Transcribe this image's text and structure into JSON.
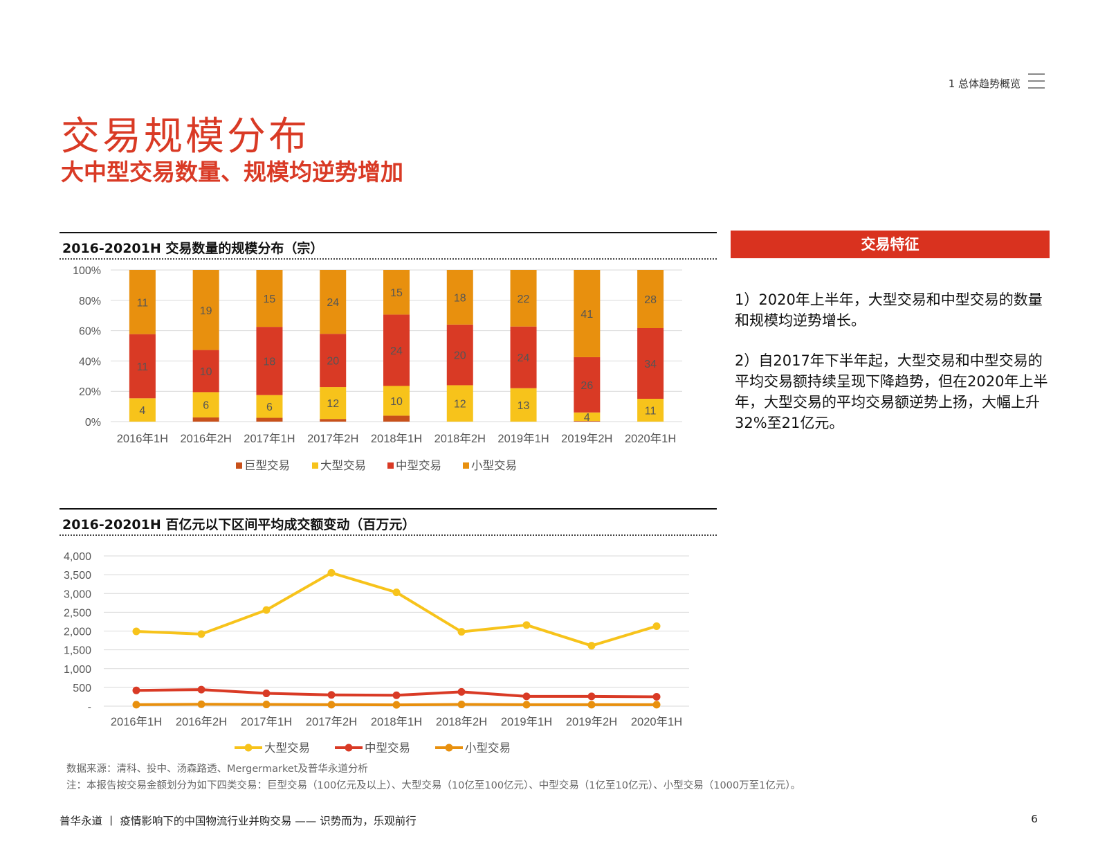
{
  "header": {
    "section": "1 总体趋势概览"
  },
  "title": "交易规模分布",
  "subtitle": "大中型交易数量、规模均逆势增加",
  "side": {
    "header": "交易特征",
    "paragraphs": [
      "1）2020年上半年，大型交易和中型交易的数量和规模均逆势增长。",
      "2）自2017年下半年起，大型交易和中型交易的平均交易额持续呈现下降趋势，但在2020年上半年，大型交易的平均交易额逆势上扬，大幅上升32%至21亿元。"
    ]
  },
  "colors": {
    "huge": "#c8501a",
    "large": "#f7c31b",
    "medium": "#d93a25",
    "small": "#e8900e",
    "accent": "#d9321f"
  },
  "chart_data": [
    {
      "type": "bar",
      "stacked": true,
      "percent": true,
      "title": "2016-20201H 交易数量的规模分布（宗）",
      "categories": [
        "2016年1H",
        "2016年2H",
        "2017年1H",
        "2017年2H",
        "2018年1H",
        "2018年2H",
        "2019年1H",
        "2019年2H",
        "2020年1H"
      ],
      "y_ticks": [
        "0%",
        "20%",
        "40%",
        "60%",
        "80%",
        "100%"
      ],
      "series": [
        {
          "name": "巨型交易",
          "values": [
            0,
            1,
            1,
            1,
            2,
            0,
            0,
            0.3,
            0
          ],
          "shown_labels": [
            "",
            "",
            "",
            "",
            "",
            "",
            "",
            "",
            ""
          ]
        },
        {
          "name": "大型交易",
          "values": [
            4,
            6,
            6,
            12,
            10,
            12,
            13,
            4,
            11
          ],
          "shown_labels": [
            "4",
            "6",
            "6",
            "12",
            "10",
            "12",
            "13",
            "4",
            "11"
          ]
        },
        {
          "name": "中型交易",
          "values": [
            11,
            10,
            18,
            20,
            24,
            20,
            24,
            26,
            34
          ],
          "shown_labels": [
            "11",
            "10",
            "18",
            "20",
            "24",
            "20",
            "24",
            "26",
            "34"
          ]
        },
        {
          "name": "小型交易",
          "values": [
            11,
            19,
            15,
            24,
            15,
            18,
            22,
            41,
            28
          ],
          "shown_labels": [
            "11",
            "19",
            "15",
            "24",
            "15",
            "18",
            "22",
            "41",
            "28"
          ]
        }
      ],
      "legend_position": "bottom"
    },
    {
      "type": "line",
      "title": "2016-20201H 百亿元以下区间平均成交额变动（百万元）",
      "categories": [
        "2016年1H",
        "2016年2H",
        "2017年1H",
        "2017年2H",
        "2018年1H",
        "2018年2H",
        "2019年1H",
        "2019年2H",
        "2020年1H"
      ],
      "y_ticks": [
        "-",
        "500",
        "1,000",
        "1,500",
        "2,000",
        "2,500",
        "3,000",
        "3,500",
        "4,000"
      ],
      "ylim": [
        0,
        4000
      ],
      "series": [
        {
          "name": "大型交易",
          "values": [
            1990,
            1920,
            2560,
            3550,
            3030,
            1980,
            2160,
            1610,
            2130
          ]
        },
        {
          "name": "中型交易",
          "values": [
            420,
            440,
            340,
            300,
            290,
            380,
            260,
            260,
            250
          ]
        },
        {
          "name": "小型交易",
          "values": [
            40,
            50,
            45,
            40,
            35,
            45,
            40,
            40,
            40
          ]
        }
      ],
      "legend_position": "bottom"
    }
  ],
  "source": "数据来源：清科、投中、汤森路透、Mergermarket及普华永道分析",
  "note": "注：本报告按交易金额划分为如下四类交易：巨型交易（100亿元及以上）、大型交易（10亿至100亿元）、中型交易（1亿至10亿元）、小型交易（1000万至1亿元）。",
  "footer": {
    "text": "普华永道 丨 疫情影响下的中国物流行业并购交易 —— 识势而为，乐观前行",
    "page": "6"
  }
}
